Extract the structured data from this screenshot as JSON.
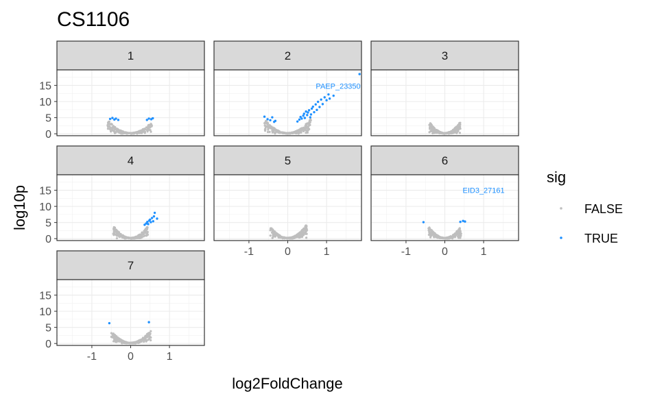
{
  "chart_data": {
    "type": "scatter",
    "title": "CS1106",
    "xlabel": "log2FoldChange",
    "ylabel": "log10p",
    "xlim": [
      -1.9,
      1.9
    ],
    "ylim": [
      -0.6,
      19.8
    ],
    "x_ticks": [
      -1,
      0,
      1
    ],
    "y_ticks": [
      0,
      5,
      10,
      15
    ],
    "grid": true,
    "facet_layout": "3 columns, 3 rows",
    "legend": {
      "title": "sig",
      "position": "right",
      "entries": [
        {
          "label": "FALSE",
          "color": "#bebebe"
        },
        {
          "label": "TRUE",
          "color": "#1e90ff"
        }
      ]
    },
    "colors": {
      "FALSE": "#bebebe",
      "TRUE": "#1e90ff"
    },
    "panels": [
      {
        "label": "1",
        "cloud": {
          "xmin": -0.6,
          "xmax": 0.55,
          "ymax_at_edge": 4.2
        },
        "sig_points": [
          [
            -0.53,
            4.6
          ],
          [
            -0.47,
            4.9
          ],
          [
            -0.42,
            4.4
          ],
          [
            -0.38,
            4.7
          ],
          [
            -0.32,
            4.3
          ],
          [
            0.42,
            4.3
          ],
          [
            0.47,
            4.7
          ],
          [
            0.53,
            4.5
          ],
          [
            0.57,
            4.8
          ]
        ],
        "annotations": []
      },
      {
        "label": "2",
        "cloud": {
          "xmin": -0.6,
          "xmax": 0.6,
          "ymax_at_edge": 4.5
        },
        "sig_points": [
          [
            -0.6,
            5.3
          ],
          [
            -0.52,
            4.5
          ],
          [
            -0.45,
            4.2
          ],
          [
            -0.4,
            5.1
          ],
          [
            -0.35,
            3.7
          ],
          [
            -0.32,
            4.0
          ],
          [
            0.25,
            3.8
          ],
          [
            0.3,
            4.4
          ],
          [
            0.33,
            5.2
          ],
          [
            0.36,
            4.7
          ],
          [
            0.4,
            5.6
          ],
          [
            0.42,
            6.2
          ],
          [
            0.44,
            4.9
          ],
          [
            0.47,
            6.9
          ],
          [
            0.5,
            5.8
          ],
          [
            0.52,
            6.6
          ],
          [
            0.55,
            7.3
          ],
          [
            0.58,
            5.1
          ],
          [
            0.6,
            6.0
          ],
          [
            0.62,
            7.8
          ],
          [
            0.65,
            8.4
          ],
          [
            0.68,
            6.7
          ],
          [
            0.72,
            9.1
          ],
          [
            0.75,
            7.4
          ],
          [
            0.78,
            9.9
          ],
          [
            0.82,
            8.3
          ],
          [
            0.86,
            10.6
          ],
          [
            0.9,
            9.2
          ],
          [
            0.95,
            11.3
          ],
          [
            1.0,
            10.4
          ],
          [
            1.05,
            12.2
          ],
          [
            1.08,
            10.9
          ],
          [
            1.18,
            11.8
          ],
          [
            1.85,
            18.5
          ]
        ],
        "annotations": [
          {
            "text": "PAEP_23350",
            "x": 1.3,
            "y": 14.8
          }
        ]
      },
      {
        "label": "3",
        "cloud": {
          "xmin": -0.4,
          "xmax": 0.4,
          "ymax_at_edge": 3.6
        },
        "sig_points": [],
        "annotations": []
      },
      {
        "label": "4",
        "cloud": {
          "xmin": -0.45,
          "xmax": 0.45,
          "ymax_at_edge": 3.9
        },
        "sig_points": [
          [
            0.36,
            4.3
          ],
          [
            0.4,
            4.7
          ],
          [
            0.43,
            5.2
          ],
          [
            0.45,
            4.5
          ],
          [
            0.48,
            5.6
          ],
          [
            0.5,
            5.9
          ],
          [
            0.52,
            5.1
          ],
          [
            0.55,
            6.4
          ],
          [
            0.58,
            5.4
          ],
          [
            0.6,
            6.9
          ],
          [
            0.62,
            8.0
          ],
          [
            0.68,
            6.2
          ]
        ],
        "annotations": []
      },
      {
        "label": "5",
        "cloud": {
          "xmin": -0.45,
          "xmax": 0.5,
          "ymax_at_edge": 4.4
        },
        "sig_points": [],
        "annotations": []
      },
      {
        "label": "6",
        "cloud": {
          "xmin": -0.42,
          "xmax": 0.42,
          "ymax_at_edge": 3.7
        },
        "sig_points": [
          [
            -0.55,
            5.1
          ],
          [
            0.4,
            5.2
          ],
          [
            0.47,
            5.5
          ],
          [
            0.52,
            5.3
          ]
        ],
        "annotations": [
          {
            "text": "EID3_27161",
            "x": 1.0,
            "y": 15.0
          }
        ]
      },
      {
        "label": "7",
        "cloud": {
          "xmin": -0.5,
          "xmax": 0.52,
          "ymax_at_edge": 4.0
        },
        "sig_points": [
          [
            -0.55,
            6.3
          ],
          [
            0.47,
            6.6
          ]
        ],
        "annotations": []
      }
    ]
  }
}
